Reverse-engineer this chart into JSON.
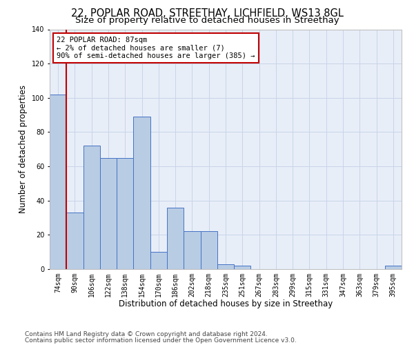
{
  "title1": "22, POPLAR ROAD, STREETHAY, LICHFIELD, WS13 8GL",
  "title2": "Size of property relative to detached houses in Streethay",
  "xlabel": "Distribution of detached houses by size in Streethay",
  "ylabel": "Number of detached properties",
  "categories": [
    "74sqm",
    "90sqm",
    "106sqm",
    "122sqm",
    "138sqm",
    "154sqm",
    "170sqm",
    "186sqm",
    "202sqm",
    "218sqm",
    "235sqm",
    "251sqm",
    "267sqm",
    "283sqm",
    "299sqm",
    "315sqm",
    "331sqm",
    "347sqm",
    "363sqm",
    "379sqm",
    "395sqm"
  ],
  "values": [
    102,
    33,
    72,
    65,
    65,
    89,
    10,
    36,
    22,
    22,
    3,
    2,
    0,
    0,
    0,
    0,
    0,
    0,
    0,
    0,
    2
  ],
  "bar_color": "#b8cce4",
  "bar_edge_color": "#4472c4",
  "vline_x_idx": 1,
  "vline_color": "#c00000",
  "annotation_text": "22 POPLAR ROAD: 87sqm\n← 2% of detached houses are smaller (7)\n90% of semi-detached houses are larger (385) →",
  "annotation_box_color": "#ffffff",
  "annotation_box_edge": "#c00000",
  "ylim": [
    0,
    140
  ],
  "yticks": [
    0,
    20,
    40,
    60,
    80,
    100,
    120,
    140
  ],
  "bg_color": "#ffffff",
  "plot_bg_color": "#e8eef8",
  "grid_color": "#c8d4e8",
  "footer1": "Contains HM Land Registry data © Crown copyright and database right 2024.",
  "footer2": "Contains public sector information licensed under the Open Government Licence v3.0.",
  "title1_fontsize": 10.5,
  "title2_fontsize": 9.5,
  "xlabel_fontsize": 8.5,
  "ylabel_fontsize": 8.5,
  "tick_fontsize": 7,
  "footer_fontsize": 6.5,
  "ann_fontsize": 7.5
}
